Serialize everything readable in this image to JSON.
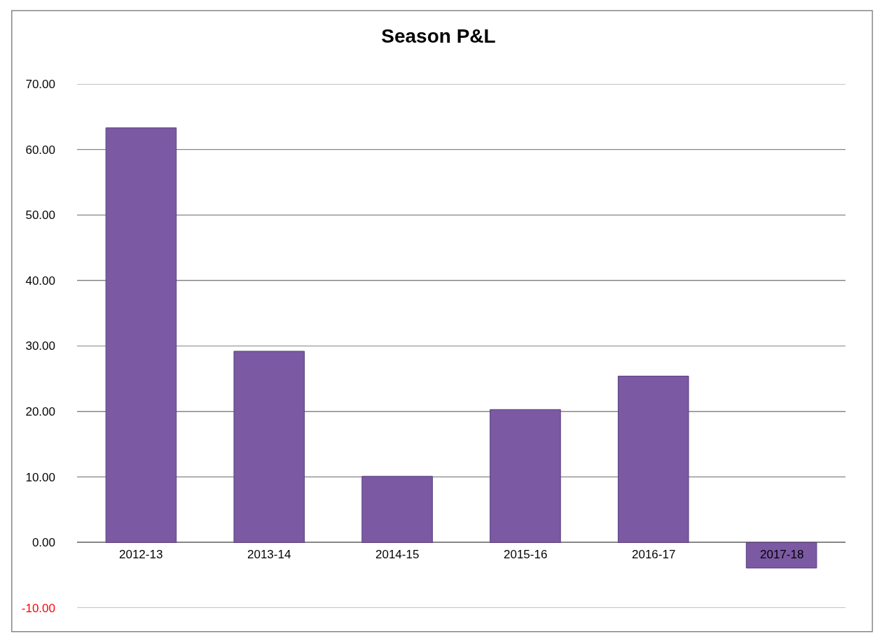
{
  "chart_data": {
    "type": "bar",
    "title": "Season P&L",
    "categories": [
      "2012-13",
      "2013-14",
      "2014-15",
      "2015-16",
      "2016-17",
      "2017-18"
    ],
    "values": [
      63.3,
      29.2,
      10.1,
      20.3,
      25.4,
      -3.9
    ],
    "color": "#7b59a3",
    "ylim": [
      -10,
      70
    ],
    "yticks": [
      {
        "value": -10,
        "label": "-10.00"
      },
      {
        "value": 0,
        "label": "0.00"
      },
      {
        "value": 10,
        "label": "10.00"
      },
      {
        "value": 20,
        "label": "20.00"
      },
      {
        "value": 30,
        "label": "30.00"
      },
      {
        "value": 40,
        "label": "40.00"
      },
      {
        "value": 50,
        "label": "50.00"
      },
      {
        "value": 60,
        "label": "60.00"
      },
      {
        "value": 70,
        "label": "70.00"
      }
    ],
    "grid": "y",
    "legend": false
  }
}
